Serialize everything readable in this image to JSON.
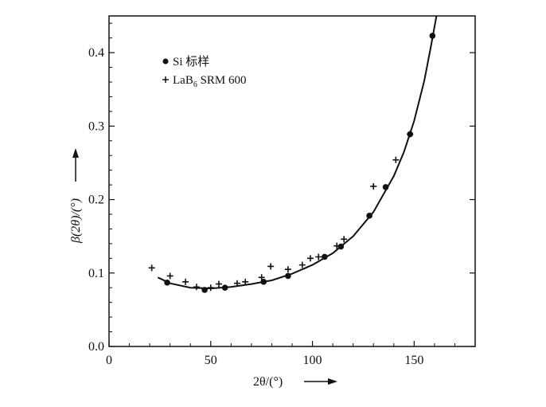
{
  "chart_data": {
    "type": "scatter",
    "xlabel": "2θ/(°)",
    "ylabel": "β(2θ)/(°)",
    "xlim": [
      0,
      180
    ],
    "ylim": [
      0,
      0.45
    ],
    "x_ticks": [
      0,
      50,
      100,
      150
    ],
    "y_ticks": [
      0.0,
      0.1,
      0.2,
      0.3,
      0.4
    ],
    "x_tick_labels": [
      "0",
      "50",
      "100",
      "150"
    ],
    "y_tick_labels": [
      "0.0",
      "0.1",
      "0.2",
      "0.3",
      "0.4"
    ],
    "grid": false,
    "legend_position": "top-left",
    "series": [
      {
        "name": "Si 标样",
        "marker": "dot",
        "x": [
          28.6,
          47,
          57,
          76,
          88,
          106,
          114,
          128,
          136,
          148,
          159
        ],
        "y": [
          0.087,
          0.077,
          0.08,
          0.088,
          0.096,
          0.122,
          0.136,
          0.178,
          0.217,
          0.289,
          0.423
        ]
      },
      {
        "name": "LaB6 SRM 600",
        "legend_sub": "6",
        "legend_base": "LaB",
        "legend_rest": " SRM 600",
        "marker": "plus",
        "x": [
          21,
          30,
          37.6,
          43,
          50,
          54,
          63,
          67,
          75,
          79.5,
          88,
          95,
          99,
          103,
          112,
          115.5,
          130,
          141,
          148
        ],
        "y": [
          0.107,
          0.096,
          0.088,
          0.081,
          0.08,
          0.085,
          0.086,
          0.088,
          0.094,
          0.109,
          0.105,
          0.111,
          0.12,
          0.122,
          0.137,
          0.146,
          0.218,
          0.254,
          0.289
        ]
      },
      {
        "marker": "line",
        "x": [
          24,
          30,
          40,
          50,
          60,
          70,
          80,
          90,
          100,
          110,
          120,
          130,
          140,
          145,
          150,
          155,
          158,
          161
        ],
        "y": [
          0.094,
          0.086,
          0.08,
          0.079,
          0.081,
          0.085,
          0.09,
          0.099,
          0.111,
          0.127,
          0.15,
          0.183,
          0.232,
          0.265,
          0.307,
          0.362,
          0.405,
          0.45
        ]
      }
    ]
  }
}
